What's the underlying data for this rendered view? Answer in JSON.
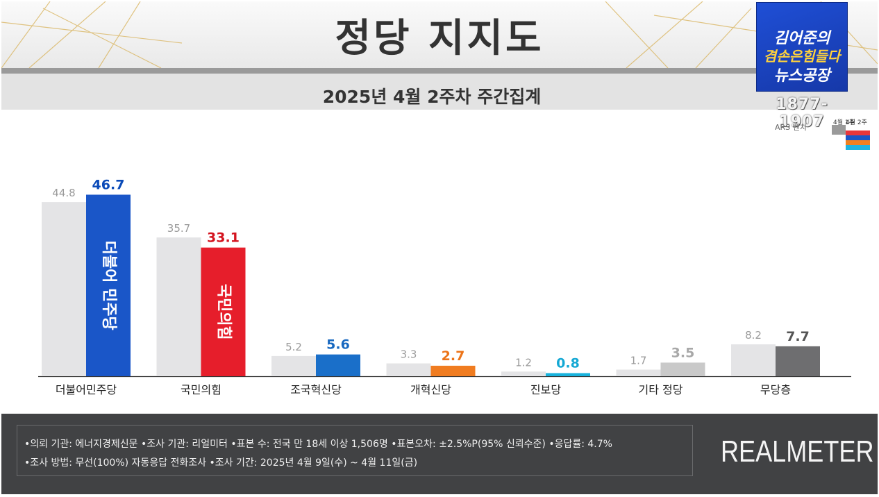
{
  "header": {
    "title": "정당 지지도",
    "subtitle": "2025년 4월 2주차 주간집계"
  },
  "logo": {
    "line1": "김어준의",
    "line2": "겸손은힘들다",
    "line3": "뉴스공장",
    "phone": "1877-1907",
    "method_label": "ARS 벤치",
    "week_prev": "4월 1주",
    "week_curr": "4월 2주",
    "swatches": [
      "#e8363c",
      "#1a56c8",
      "#f08020",
      "#1fb3e0"
    ]
  },
  "chart_data": {
    "type": "bar",
    "title": "정당 지지도",
    "subtitle": "2025년 4월 2주차 주간집계",
    "categories": [
      "더불어민주당",
      "국민의힘",
      "조국혁신당",
      "개혁신당",
      "진보당",
      "기타 정당",
      "무당층"
    ],
    "series": [
      {
        "values": [
          44.8,
          35.7,
          5.2,
          3.3,
          1.2,
          1.7,
          8.2
        ]
      },
      {
        "values": [
          46.7,
          33.1,
          5.6,
          2.7,
          0.8,
          3.5,
          7.7
        ]
      }
    ],
    "ylim": [
      0,
      50
    ],
    "grid": false,
    "colors": {
      "previous": "#e4e4e6",
      "current": [
        "#1a56c8",
        "#e61e2b",
        "#1a6fc9",
        "#f07c20",
        "#18b2dc",
        "#c9c9c9",
        "#6e6e70"
      ],
      "label_current": [
        "#0b4bb8",
        "#d4141f",
        "#1768c0",
        "#ec7418",
        "#14a8d4",
        "#a8a8a8",
        "#555555"
      ]
    },
    "bar_logos": [
      "더불어 민주당",
      "국민의힘"
    ]
  },
  "footer": {
    "line1": "•의뢰 기관: 에너지경제신문  •조사 기관: 리얼미터 •표본 수: 전국 만 18세 이상 1,506명 •표본오차: ±2.5%P(95% 신뢰수준) •응답률: 4.7%",
    "line2": "•조사 방법: 무선(100%) 자동응답 전화조사 •조사 기간: 2025년 4월 9일(수) ~ 4월 11일(금)",
    "brand": "REALMETER"
  }
}
